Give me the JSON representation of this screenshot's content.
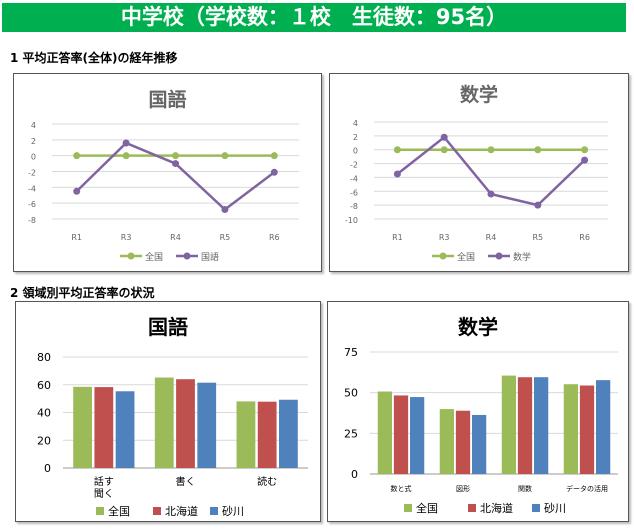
{
  "banner": {
    "title": "中学校（学校数：１校　生徒数：95名）",
    "color": "#00b050"
  },
  "section1": {
    "title": "1  平均正答率(全体)の経年推移"
  },
  "section2": {
    "title": "2  領域別平均正答率の状況"
  },
  "chart_data": [
    {
      "type": "line",
      "title": "国語",
      "categories": [
        "R1",
        "R3",
        "R4",
        "R5",
        "R6"
      ],
      "ylim": [
        -8,
        4
      ],
      "yticks": [
        4,
        2,
        0,
        -2,
        -4,
        -6,
        -8
      ],
      "grid": true,
      "legend": "bottom",
      "series": [
        {
          "name": "全国",
          "values": [
            0,
            0,
            0,
            0,
            0
          ],
          "color": "#9bbb59"
        },
        {
          "name": "国語",
          "values": [
            -4.5,
            1.6,
            -1.0,
            -6.8,
            -2.1
          ],
          "color": "#8064a2"
        }
      ]
    },
    {
      "type": "line",
      "title": "数学",
      "categories": [
        "R1",
        "R3",
        "R4",
        "R5",
        "R6"
      ],
      "ylim": [
        -10,
        4
      ],
      "yticks": [
        4,
        2,
        0,
        -2,
        -4,
        -6,
        -8,
        -10
      ],
      "grid": true,
      "legend": "bottom",
      "series": [
        {
          "name": "全国",
          "values": [
            0,
            0,
            0,
            0,
            0
          ],
          "color": "#9bbb59"
        },
        {
          "name": "数学",
          "values": [
            -3.5,
            1.8,
            -6.4,
            -8.0,
            -1.5
          ],
          "color": "#8064a2"
        }
      ]
    },
    {
      "type": "bar",
      "title": "国語",
      "categories": [
        "話す\n聞く",
        "書く",
        "読む"
      ],
      "ylim": [
        0,
        80
      ],
      "yticks": [
        0,
        20,
        40,
        60,
        80
      ],
      "grid": true,
      "legend": "bottom",
      "series": [
        {
          "name": "全国",
          "values": [
            58.5,
            65.2,
            48.0
          ],
          "color": "#9bbb59"
        },
        {
          "name": "北海道",
          "values": [
            58.3,
            64.0,
            47.8
          ],
          "color": "#c0504d"
        },
        {
          "name": "砂川",
          "values": [
            55.3,
            61.5,
            49.2
          ],
          "color": "#4f81bd"
        }
      ]
    },
    {
      "type": "bar",
      "title": "数学",
      "categories": [
        "数と式",
        "図形",
        "関数",
        "データの活用"
      ],
      "ylim": [
        0,
        75
      ],
      "yticks": [
        0,
        25,
        50,
        75
      ],
      "grid": true,
      "legend": "bottom",
      "series": [
        {
          "name": "全国",
          "values": [
            50.7,
            39.9,
            60.5,
            55.2
          ],
          "color": "#9bbb59"
        },
        {
          "name": "北海道",
          "values": [
            48.3,
            38.9,
            59.5,
            54.4
          ],
          "color": "#c0504d"
        },
        {
          "name": "砂川",
          "values": [
            47.3,
            36.3,
            59.5,
            57.7
          ],
          "color": "#4f81bd"
        }
      ]
    }
  ]
}
